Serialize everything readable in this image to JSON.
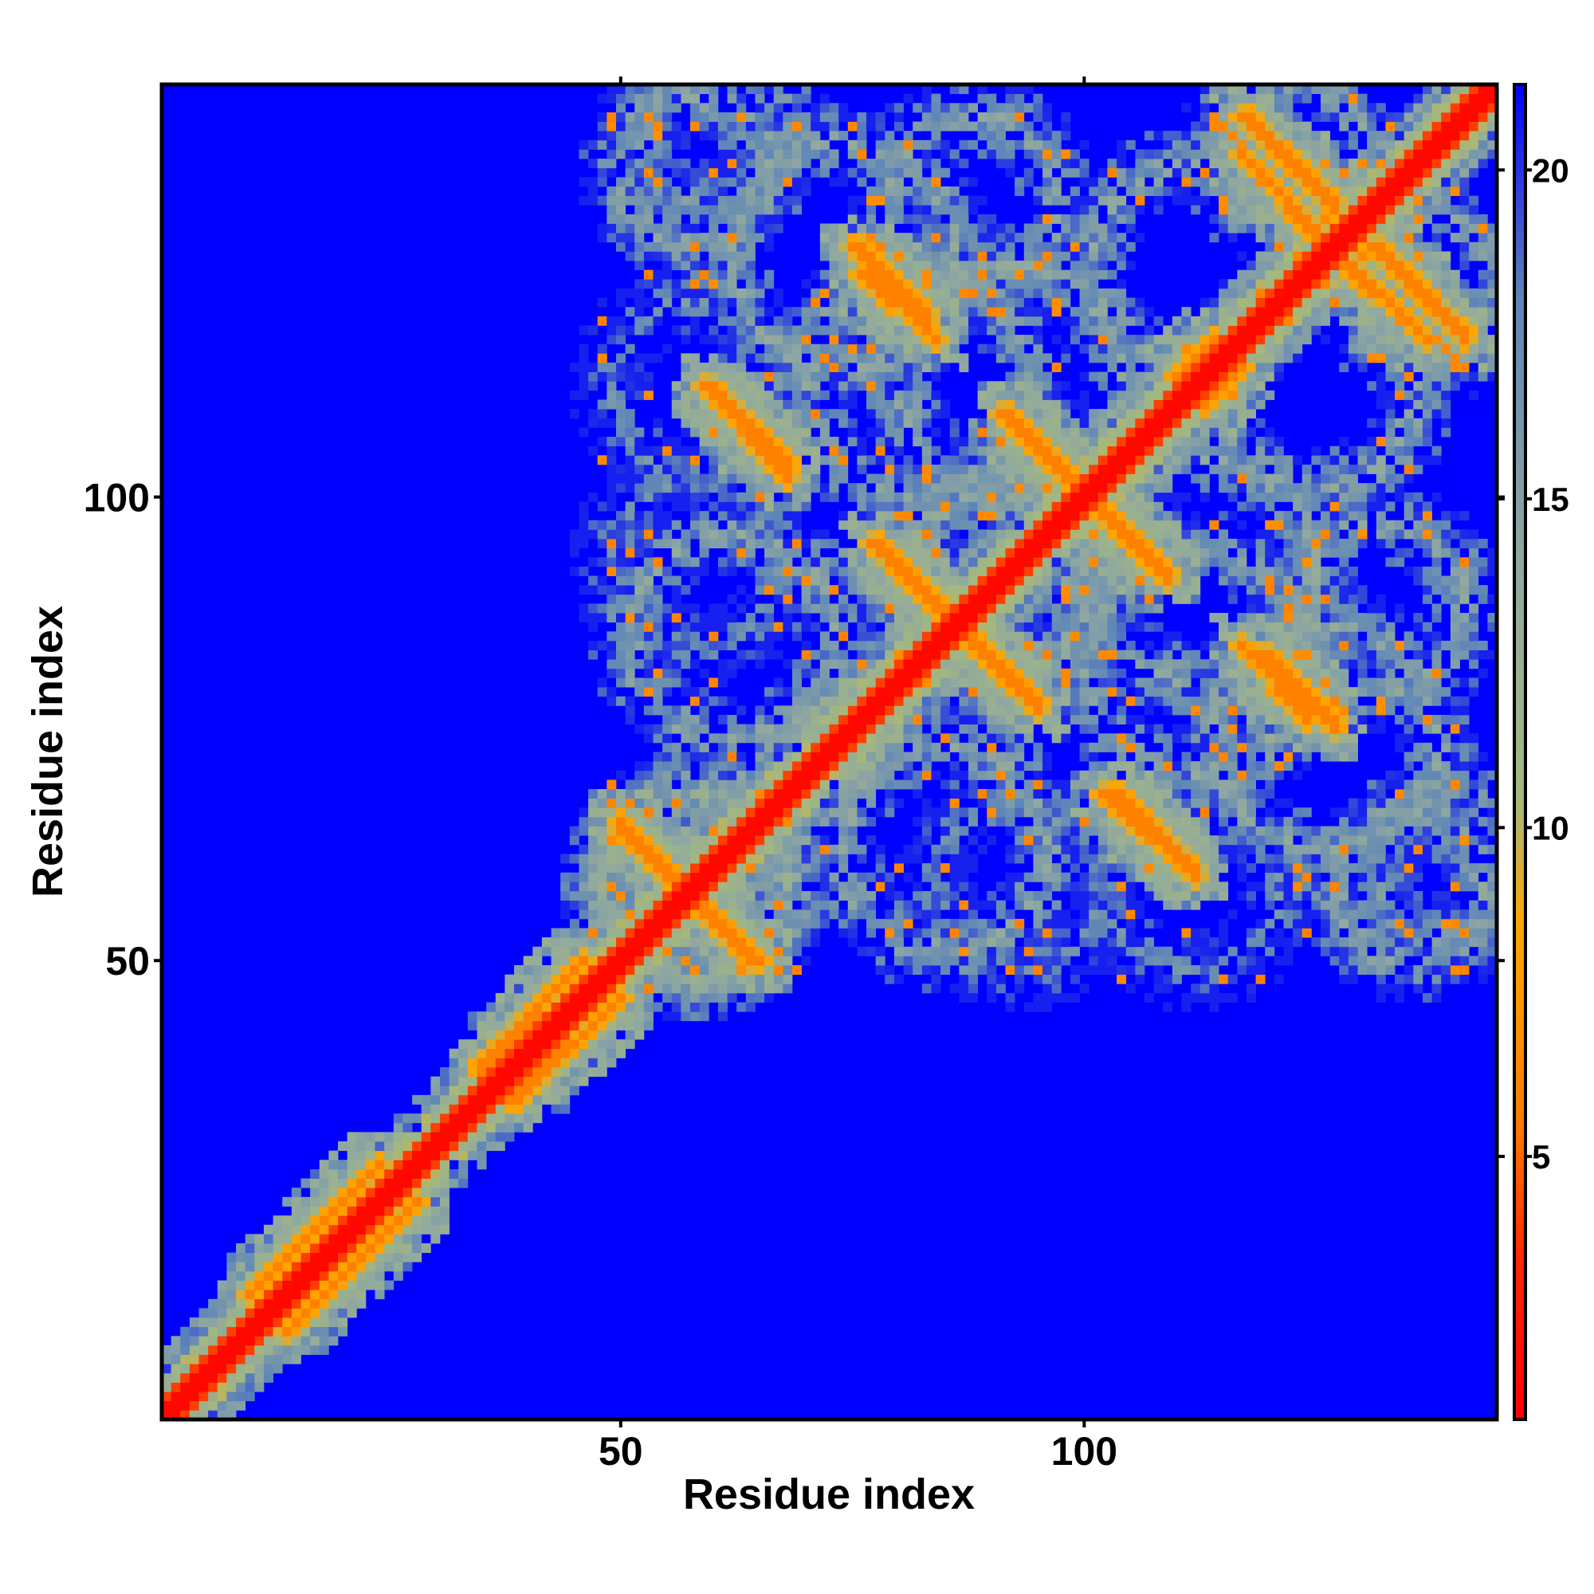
{
  "chart_data": {
    "type": "heatmap",
    "title": "",
    "xlabel": "Residue index",
    "ylabel": "Residue index",
    "xlim": [
      1,
      144
    ],
    "ylim": [
      1,
      144
    ],
    "x_ticks": [
      50,
      100
    ],
    "y_ticks": [
      50,
      100
    ],
    "x_tick_labels": [
      "50",
      "100"
    ],
    "y_tick_labels": [
      "50",
      "100"
    ],
    "colorbar": {
      "range": [
        1,
        21.3
      ],
      "ticks": [
        5,
        10,
        15,
        20
      ],
      "tick_labels": [
        "5",
        "10",
        "15",
        "20"
      ],
      "colors": [
        {
          "value": 1,
          "color": "#ff0000"
        },
        {
          "value": 3.5,
          "color": "#ff2a00"
        },
        {
          "value": 5.5,
          "color": "#ff7a00"
        },
        {
          "value": 8.5,
          "color": "#ffa500"
        },
        {
          "value": 10.5,
          "color": "#a4b87e"
        },
        {
          "value": 14,
          "color": "#90a8a0"
        },
        {
          "value": 18,
          "color": "#5f86b8"
        },
        {
          "value": 21.3,
          "color": "#0000ff"
        }
      ]
    },
    "background_color": "#0000ff",
    "diagonal_value": 1.5,
    "features": [
      {
        "kind": "diagonal-band",
        "from": 1,
        "to": 144,
        "value": 2
      },
      {
        "kind": "segment",
        "from": [
          10,
          14
        ],
        "to": [
          24,
          28
        ],
        "value": 6
      },
      {
        "kind": "segment",
        "from": [
          35,
          38
        ],
        "to": [
          46,
          50
        ],
        "value": 6
      },
      {
        "kind": "segment",
        "from": [
          50,
          65
        ],
        "to": [
          64,
          50
        ],
        "value": 6
      },
      {
        "kind": "segment",
        "from": [
          73,
          73
        ],
        "to": [
          78,
          78
        ],
        "value": 6
      },
      {
        "kind": "segment",
        "from": [
          59,
          112
        ],
        "to": [
          68,
          104
        ],
        "value": 6
      },
      {
        "kind": "segment",
        "from": [
          76,
          124
        ],
        "to": [
          84,
          117
        ],
        "value": 6
      },
      {
        "kind": "segment",
        "from": [
          92,
          108
        ],
        "to": [
          100,
          101
        ],
        "value": 6
      },
      {
        "kind": "segment",
        "from": [
          77,
          95
        ],
        "to": [
          94,
          78
        ],
        "value": 6
      },
      {
        "kind": "segment",
        "from": [
          100,
          100
        ],
        "to": [
          109,
          91
        ],
        "value": 6
      },
      {
        "kind": "segment",
        "from": [
          102,
          68
        ],
        "to": [
          111,
          60
        ],
        "value": 6
      },
      {
        "kind": "segment",
        "from": [
          110,
          113
        ],
        "to": [
          114,
          117
        ],
        "value": 6
      },
      {
        "kind": "segment",
        "from": [
          119,
          83
        ],
        "to": [
          127,
          75
        ],
        "value": 6
      },
      {
        "kind": "segment",
        "from": [
          117,
          141
        ],
        "to": [
          127,
          131
        ],
        "value": 6
      },
      {
        "kind": "segment",
        "from": [
          126,
          127
        ],
        "to": [
          137,
          117
        ],
        "value": 6
      },
      {
        "kind": "ring",
        "center": [
          58,
          58
        ],
        "radius": 10,
        "value": 12
      },
      {
        "kind": "ring",
        "center": [
          82,
          112
        ],
        "radius": 12,
        "value": 13
      },
      {
        "kind": "ring",
        "center": [
          62,
          85
        ],
        "radius": 11,
        "value": 13
      },
      {
        "kind": "ring",
        "center": [
          90,
          90
        ],
        "radius": 10,
        "value": 13
      },
      {
        "kind": "ring",
        "center": [
          113,
          92
        ],
        "radius": 12,
        "value": 13
      },
      {
        "kind": "ring",
        "center": [
          126,
          74
        ],
        "radius": 12,
        "value": 13
      },
      {
        "kind": "ring",
        "center": [
          125,
          112
        ],
        "radius": 11,
        "value": 13
      },
      {
        "kind": "ring",
        "center": [
          88,
          132
        ],
        "radius": 9,
        "value": 13
      },
      {
        "kind": "ring",
        "center": [
          122,
          137
        ],
        "radius": 8,
        "value": 13
      },
      {
        "kind": "ring",
        "center": [
          58,
          135
        ],
        "radius": 8,
        "value": 13
      },
      {
        "kind": "ring",
        "center": [
          140,
          60
        ],
        "radius": 8,
        "value": 14
      },
      {
        "kind": "ring",
        "center": [
          93,
          58
        ],
        "radius": 9,
        "value": 15
      },
      {
        "kind": "ring",
        "center": [
          112,
          58
        ],
        "radius": 9,
        "value": 15
      }
    ]
  }
}
